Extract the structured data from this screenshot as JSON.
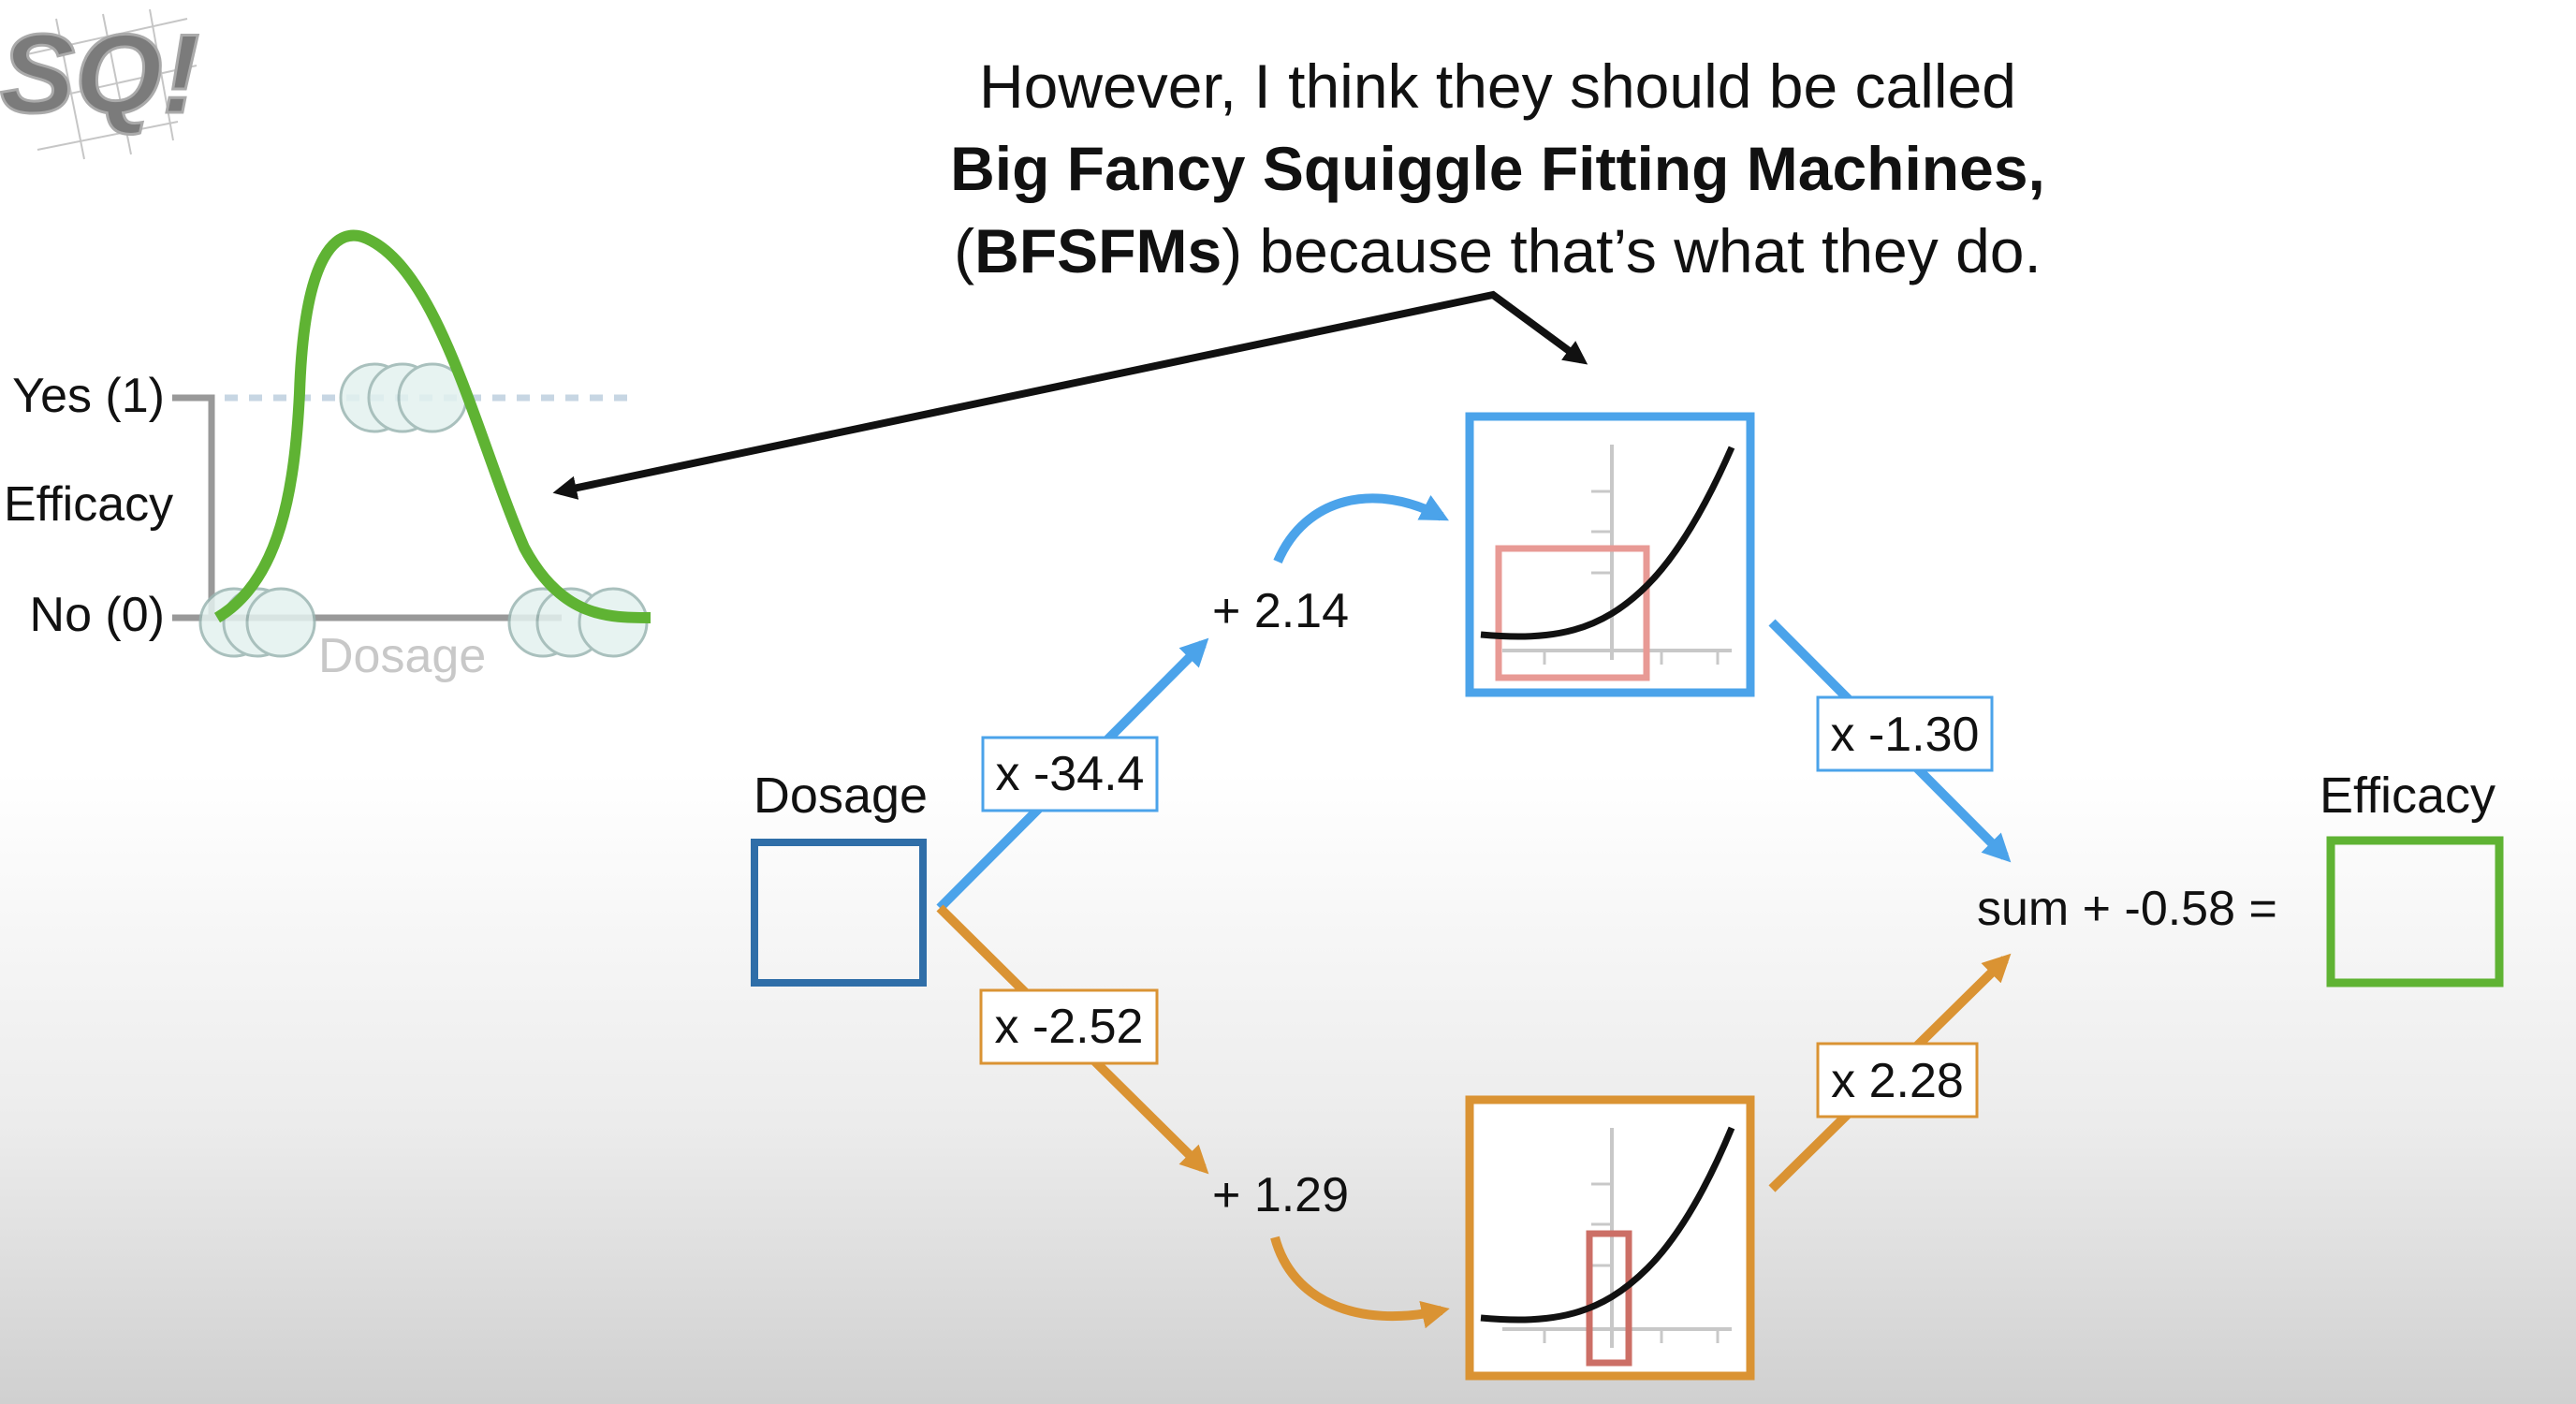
{
  "caption": {
    "line1": "However, I think they should be called",
    "line2": "Big Fancy Squiggle Fitting Machines,",
    "line3_open": "(",
    "line3_bold": "BFSFMs",
    "line3_rest": ") because that’s what they do."
  },
  "logo_text": "SQ!",
  "left_plot": {
    "yes_label": "Yes (1)",
    "y_axis_label": "Efficacy",
    "no_label": "No (0)",
    "x_axis_label": "Dosage"
  },
  "network": {
    "input_label": "Dosage",
    "output_label": "Efficacy",
    "top_weight": "x -34.4",
    "top_bias": "+ 2.14",
    "top_out_weight": "x -1.30",
    "bottom_weight": "x -2.52",
    "bottom_bias": "+ 1.29",
    "bottom_out_weight": "x 2.28",
    "sum_text": "sum + -0.58 ="
  },
  "colors": {
    "blue": "#4ba3ea",
    "orange": "#da9333",
    "green": "#5fb333",
    "input_box": "#2f6ea8",
    "highlight": "#e89a95",
    "highlight_dark": "#cc6f66"
  }
}
